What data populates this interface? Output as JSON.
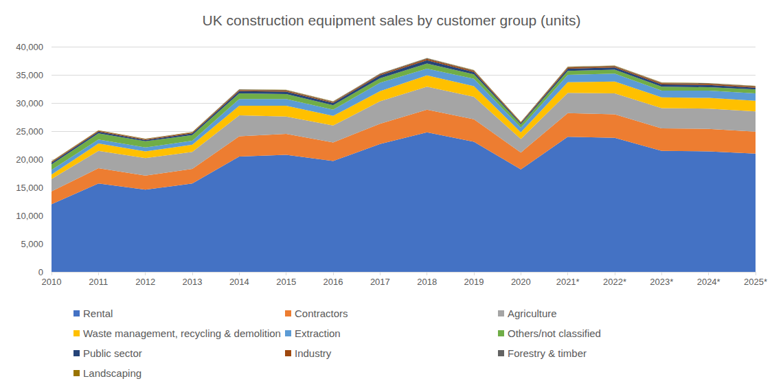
{
  "chart_data": {
    "type": "area",
    "title": "UK construction equipment sales by customer group (units)",
    "stacked": true,
    "grid": true,
    "legend": "bottom",
    "categories": [
      "2010",
      "2011",
      "2012",
      "2013",
      "2014",
      "2015",
      "2016",
      "2017",
      "2018",
      "2019",
      "2020",
      "2021*",
      "2022*",
      "2023*",
      "2024*",
      "2025*"
    ],
    "ylim": [
      0,
      40000
    ],
    "yticks": [
      0,
      {
        "value": 5000,
        "label": "5,000"
      },
      {
        "value": 10000,
        "label": "10,000"
      },
      {
        "value": 15000,
        "label": "15,000"
      },
      {
        "value": 20000,
        "label": "20,000"
      },
      {
        "value": 25000,
        "label": "25,000"
      },
      {
        "value": 30000,
        "label": "30,000"
      },
      {
        "value": 35000,
        "label": "35,000"
      },
      {
        "value": 40000,
        "label": "40,000"
      }
    ],
    "series": [
      {
        "name": "Rental",
        "color": "#4472c4",
        "values": [
          12000,
          15700,
          14600,
          15700,
          20500,
          20800,
          19700,
          22700,
          24800,
          23100,
          18200,
          24000,
          23800,
          21500,
          21400,
          21000
        ]
      },
      {
        "name": "Contractors",
        "color": "#ed7d31",
        "values": [
          2300,
          2700,
          2500,
          2600,
          3600,
          3700,
          3300,
          3600,
          4000,
          4000,
          3000,
          4200,
          4200,
          4000,
          4000,
          3900
        ]
      },
      {
        "name": "Agriculture",
        "color": "#a5a5a5",
        "values": [
          2200,
          3100,
          3100,
          3000,
          3700,
          3100,
          3000,
          4000,
          4100,
          4000,
          2400,
          3600,
          3700,
          3600,
          3600,
          3600
        ]
      },
      {
        "name": "Waste management, recycling & demolition",
        "color": "#ffc000",
        "values": [
          800,
          1300,
          1200,
          1300,
          1700,
          1900,
          1700,
          1800,
          2000,
          1900,
          1200,
          1900,
          2100,
          1900,
          1900,
          1900
        ]
      },
      {
        "name": "Extraction",
        "color": "#5b9bd5",
        "values": [
          800,
          700,
          700,
          700,
          1200,
          1200,
          1100,
          1500,
          1200,
          1300,
          800,
          1300,
          1400,
          1200,
          1300,
          1300
        ]
      },
      {
        "name": "Others/not classified",
        "color": "#70ad47",
        "values": [
          1000,
          1100,
          1100,
          1000,
          1000,
          900,
          800,
          800,
          900,
          800,
          600,
          700,
          700,
          700,
          600,
          700
        ]
      },
      {
        "name": "Public sector",
        "color": "#264478",
        "values": [
          300,
          300,
          200,
          300,
          400,
          400,
          400,
          500,
          600,
          400,
          200,
          400,
          400,
          400,
          400,
          300
        ]
      },
      {
        "name": "Industry",
        "color": "#9e480e",
        "values": [
          150,
          150,
          150,
          150,
          200,
          200,
          150,
          200,
          250,
          200,
          150,
          200,
          200,
          200,
          200,
          200
        ]
      },
      {
        "name": "Forestry & timber",
        "color": "#636363",
        "values": [
          50,
          50,
          50,
          50,
          100,
          100,
          100,
          100,
          100,
          100,
          50,
          100,
          100,
          100,
          100,
          100
        ]
      },
      {
        "name": "Landscaping",
        "color": "#997300",
        "values": [
          50,
          50,
          50,
          50,
          50,
          50,
          50,
          50,
          50,
          50,
          50,
          50,
          50,
          50,
          50,
          50
        ]
      }
    ]
  }
}
